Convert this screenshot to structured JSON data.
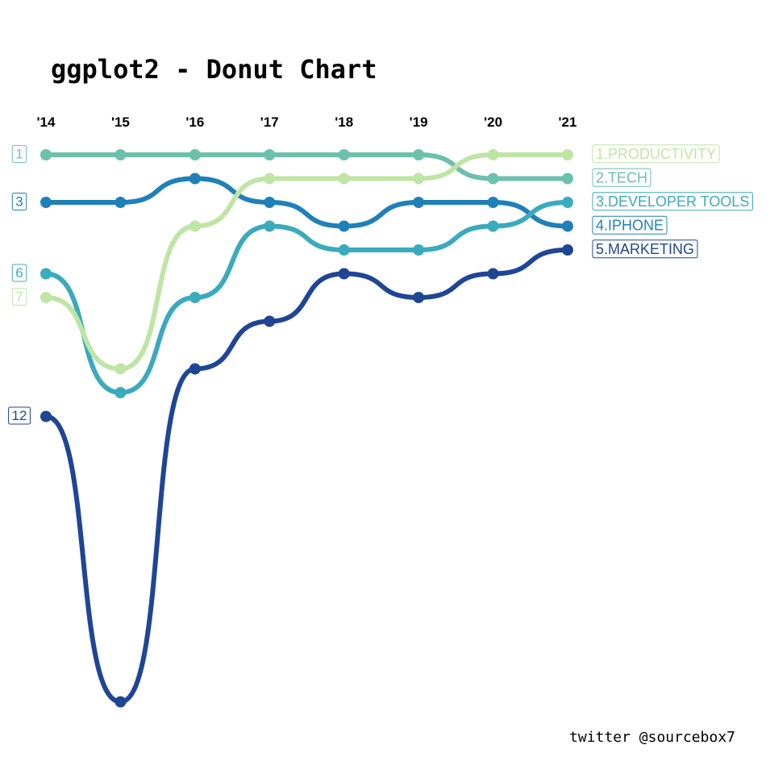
{
  "chart_data": {
    "type": "bump",
    "title": "ggplot2 - Donut Chart",
    "caption": "twitter @sourcebox7",
    "categories": [
      "'14",
      "'15",
      "'16",
      "'17",
      "'18",
      "'19",
      "'20",
      "'21"
    ],
    "ylim": [
      1,
      24
    ],
    "y_reversed": true,
    "series": [
      {
        "name": "1.PRODUCTIVITY",
        "color": "#bfe5a4",
        "values": [
          7,
          10,
          4,
          2,
          2,
          2,
          1,
          1
        ]
      },
      {
        "name": "2.TECH",
        "color": "#6cc0ac",
        "values": [
          1,
          1,
          1,
          1,
          1,
          1,
          2,
          2
        ]
      },
      {
        "name": "3.DEVELOPER TOOLS",
        "color": "#3aaabd",
        "values": [
          6,
          11,
          7,
          4,
          5,
          5,
          4,
          3
        ]
      },
      {
        "name": "4.IPHONE",
        "color": "#1f80b8",
        "values": [
          3,
          3,
          2,
          3,
          4,
          3,
          3,
          4
        ]
      },
      {
        "name": "5.MARKETING",
        "color": "#1f4595",
        "values": [
          12,
          24,
          10,
          8,
          6,
          7,
          6,
          5
        ]
      }
    ]
  }
}
